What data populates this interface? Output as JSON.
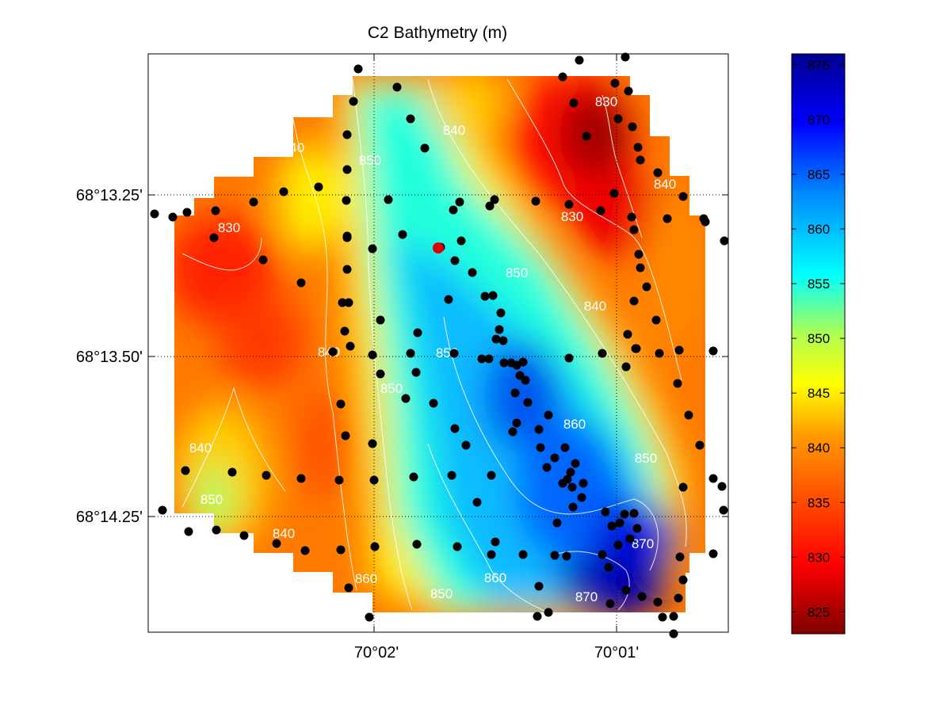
{
  "map": {
    "title": "C2 Bathymetry (m)",
    "latitude_ticks": [
      "68°13.25'",
      "68°13.50'",
      "68°14.25'"
    ],
    "longitude_ticks": [
      "70°02'",
      "70°01'"
    ],
    "colormap": "jet-reversed",
    "grid_style": "dotted",
    "colorbar": {
      "range": [
        823,
        876
      ],
      "ticks": [
        825,
        830,
        835,
        840,
        845,
        850,
        855,
        860,
        865,
        870,
        875
      ],
      "low_color": "#7f0000",
      "high_color": "#00008f"
    },
    "contour_labels": [
      "830",
      "830",
      "830",
      "840",
      "840",
      "840",
      "840",
      "840",
      "840",
      "840",
      "850",
      "850",
      "850",
      "850",
      "850",
      "850",
      "850",
      "860",
      "860",
      "860",
      "870",
      "870"
    ],
    "station_color": "#000000",
    "highlight_station_color": "#e00000"
  }
}
